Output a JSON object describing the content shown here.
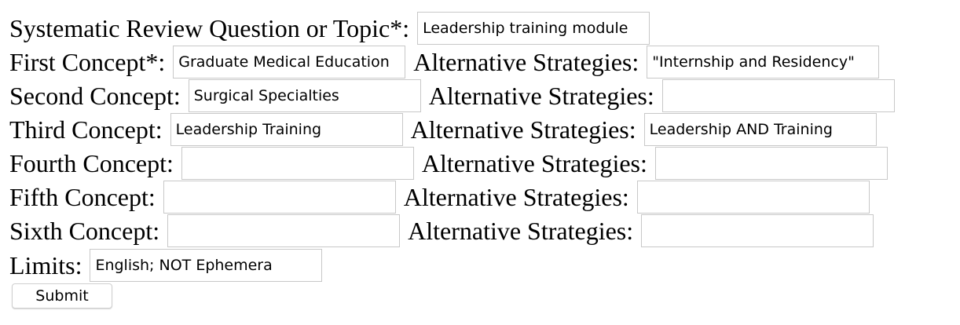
{
  "form": {
    "topic": {
      "label": "Systematic Review Question or Topic*:",
      "value": "Leadership training module"
    },
    "concepts": [
      {
        "label": "First Concept*:",
        "value": "Graduate Medical Education",
        "alt_label": "Alternative Strategies:",
        "alt_value": "\"Internship and Residency\""
      },
      {
        "label": "Second Concept:",
        "value": "Surgical Specialties",
        "alt_label": "Alternative Strategies:",
        "alt_value": ""
      },
      {
        "label": "Third Concept:",
        "value": "Leadership Training",
        "alt_label": "Alternative Strategies:",
        "alt_value": "Leadership AND Training"
      },
      {
        "label": "Fourth Concept:",
        "value": "",
        "alt_label": "Alternative Strategies:",
        "alt_value": ""
      },
      {
        "label": "Fifth Concept:",
        "value": "",
        "alt_label": "Alternative Strategies:",
        "alt_value": ""
      },
      {
        "label": "Sixth Concept:",
        "value": "",
        "alt_label": "Alternative Strategies:",
        "alt_value": ""
      }
    ],
    "limits": {
      "label": "Limits:",
      "value": "English; NOT Ephemera"
    },
    "submit_label": "Submit"
  }
}
